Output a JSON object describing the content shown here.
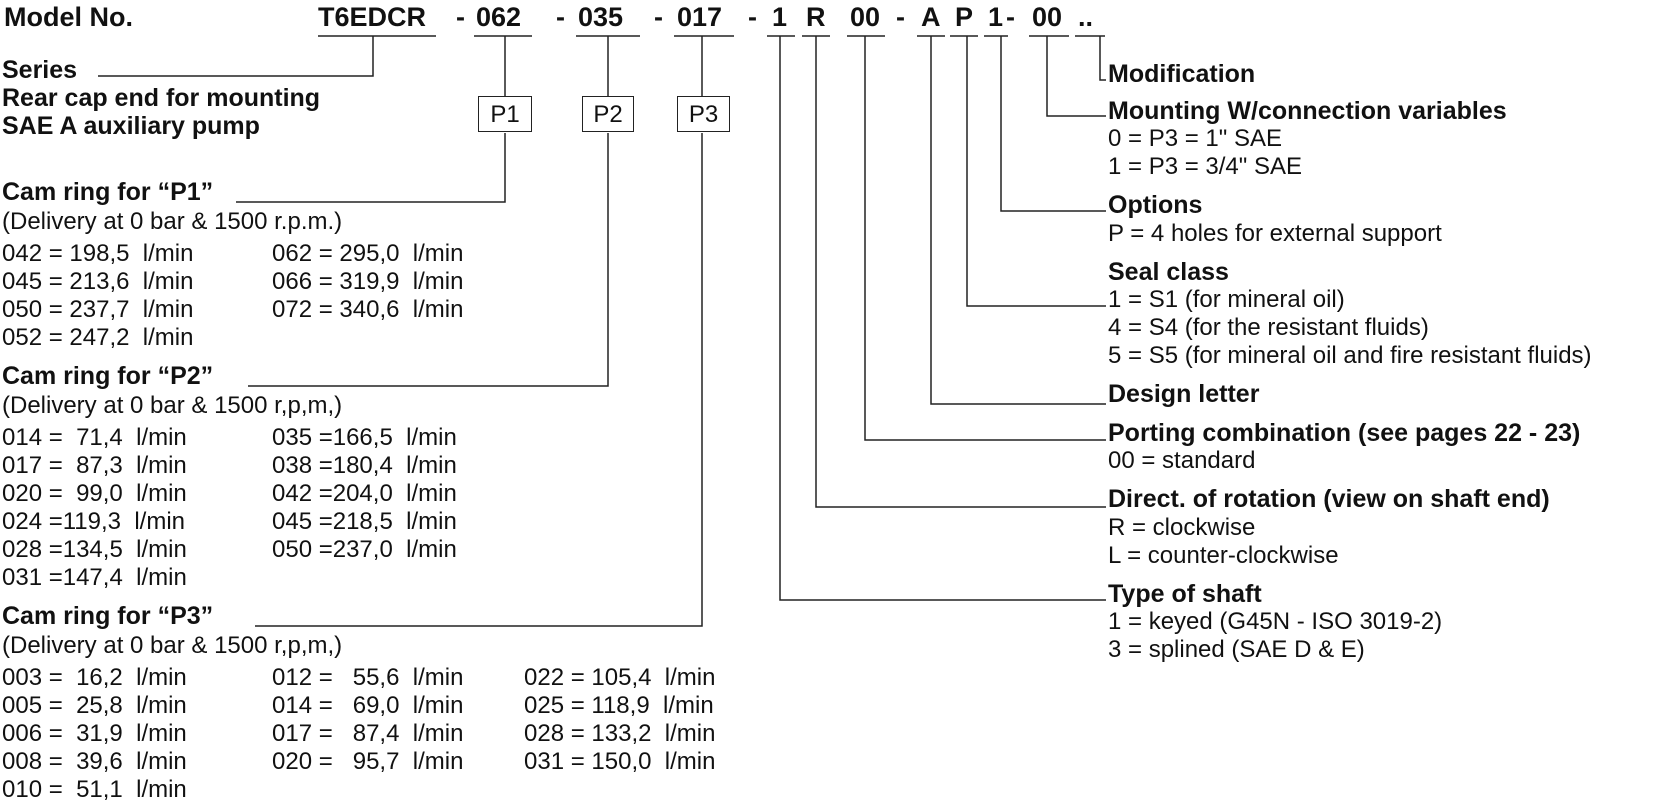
{
  "model_label": "Model No.",
  "code": {
    "series": "T6EDCR",
    "sep1": "-",
    "p1": "062",
    "sep2": "-",
    "p2": "035",
    "sep3": "-",
    "p3": "017",
    "sep4": "-",
    "shaft": "1",
    "rotation": "R",
    "porting": "00",
    "sep5": "-",
    "design": "A",
    "seal": "P",
    "options": "1",
    "sep6": "-",
    "mounting": "00",
    "modification": ".."
  },
  "left": {
    "series": "Series",
    "rear_cap_1": "Rear cap end for mounting",
    "rear_cap_2": "SAE A auxiliary pump",
    "boxes": [
      "P1",
      "P2",
      "P3"
    ],
    "p1": {
      "title": "Cam ring for “P1”",
      "sub": "(Delivery at 0 bar & 1500 r.p.m.)",
      "rows": [
        "042 = 198,5  l/min",
        "045 = 213,6  l/min",
        "050 = 237,7  l/min",
        "052 = 247,2  l/min",
        "062 = 295,0  l/min",
        "066 = 319,9  l/min",
        "072 = 340,6  l/min"
      ]
    },
    "p2": {
      "title": "Cam ring for “P2”",
      "sub": "(Delivery at 0 bar & 1500 r,p,m,)",
      "rows": [
        "014 =  71,4  l/min",
        "017 =  87,3  l/min",
        "020 =  99,0  l/min",
        "024 =119,3  l/min",
        "028 =134,5  l/min",
        "031 =147,4  l/min",
        "035 =166,5  l/min",
        "038 =180,4  l/min",
        "042 =204,0  l/min",
        "045 =218,5  l/min",
        "050 =237,0  l/min"
      ]
    },
    "p3": {
      "title": "Cam ring for “P3”",
      "sub": "(Delivery at 0 bar & 1500 r,p,m,)",
      "rows": [
        "003 =  16,2  l/min",
        "005 =  25,8  l/min",
        "006 =  31,9  l/min",
        "008 =  39,6  l/min",
        "010 =  51,1  l/min",
        "012 =   55,6  l/min",
        "014 =   69,0  l/min",
        "017 =   87,4  l/min",
        "020 =   95,7  l/min",
        "022 = 105,4  l/min",
        "025 = 118,9  l/min",
        "028 = 133,2  l/min",
        "031 = 150,0  l/min"
      ]
    }
  },
  "right": {
    "modification": "Modification",
    "mounting": {
      "title": "Mounting W/connection variables",
      "lines": [
        "0 = P3 = 1\" SAE",
        "1 = P3 = 3/4\" SAE"
      ]
    },
    "options": {
      "title": "Options",
      "lines": [
        "P = 4 holes for external support"
      ]
    },
    "seal": {
      "title": "Seal class",
      "lines": [
        "1 = S1 (for mineral oil)",
        "4 = S4 (for the resistant fluids)",
        "5 = S5 (for mineral oil and fire resistant fluids)"
      ]
    },
    "design": {
      "title": "Design letter"
    },
    "porting": {
      "title": "Porting combination (see pages 22 - 23)",
      "lines": [
        "00 = standard"
      ]
    },
    "rotation": {
      "title": "Direct. of rotation (view on shaft end)",
      "lines": [
        "R = clockwise",
        "L = counter-clockwise"
      ]
    },
    "shaft": {
      "title": "Type of shaft",
      "lines": [
        "1 = keyed (G45N - ISO 3019-2)",
        "3 = splined (SAE D & E)"
      ]
    }
  }
}
